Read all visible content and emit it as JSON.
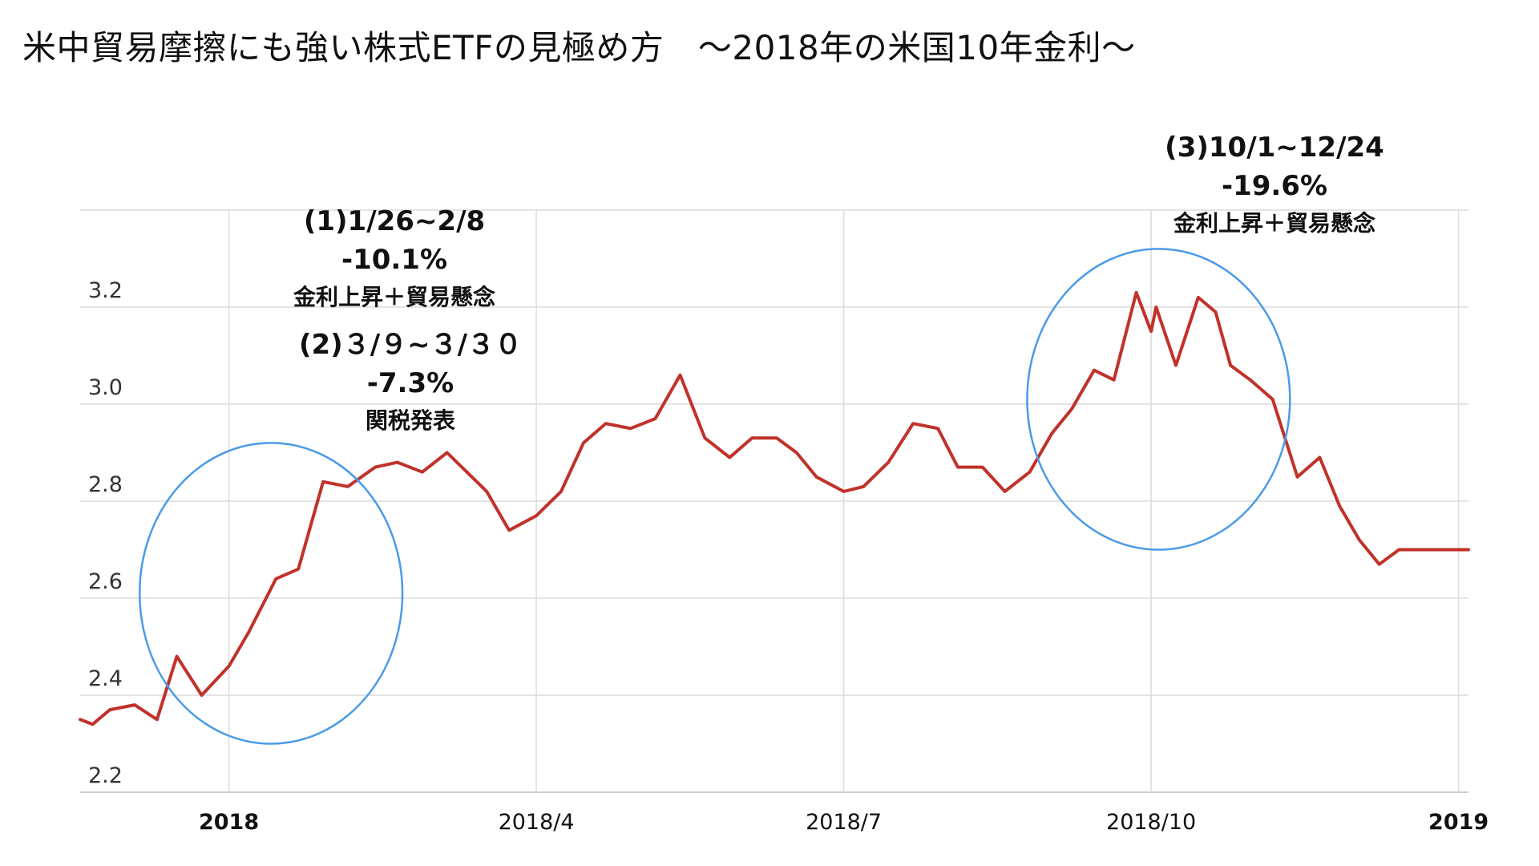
{
  "title": "米中貿易摩擦にも強い株式ETFの見極め方　～2018年の米国10年金利～",
  "annotations": [
    {
      "period": "(1)1/26~2/8",
      "change": "-10.1%",
      "reason": "金利上昇＋貿易懸念"
    },
    {
      "period": "(2)３/９~３/３０",
      "change": "-7.3%",
      "reason": "関税発表"
    },
    {
      "period": "(3)10/1~12/24",
      "change": "-19.6%",
      "reason": "金利上昇＋貿易懸念"
    }
  ],
  "chart_data": {
    "type": "line",
    "title": "",
    "xlabel": "",
    "ylabel": "",
    "ylim": [
      2.2,
      3.4
    ],
    "yticks": [
      2.2,
      2.4,
      2.6,
      2.8,
      3.0,
      3.2
    ],
    "ytick_labels": [
      "2.2",
      "2.4",
      "2.6",
      "2.8",
      "3.0",
      "3.2"
    ],
    "xlim": [
      -6,
      50
    ],
    "xticks": [
      {
        "x": 0,
        "label": "2018",
        "bold": true
      },
      {
        "x": 12.4,
        "label": "2018/4",
        "bold": false
      },
      {
        "x": 24.8,
        "label": "2018/7",
        "bold": false
      },
      {
        "x": 37.2,
        "label": "2018/10",
        "bold": false
      },
      {
        "x": 49.6,
        "label": "2019",
        "bold": true
      }
    ],
    "grid": true,
    "line_color": "#c0322a",
    "highlight_color": "#4a9be8",
    "highlights": [
      {
        "x_center": 1.7,
        "y_center": 2.61,
        "x_radius": 5.3,
        "y_radius": 0.31
      },
      {
        "x_center": 37.5,
        "y_center": 3.01,
        "x_radius": 5.3,
        "y_radius": 0.31
      }
    ],
    "series": [
      {
        "x": [
          -6,
          -5.5,
          -4.8,
          -3.8,
          -2.9,
          -2.1,
          -1.1,
          0,
          0.8,
          1.9,
          2.8,
          3.8,
          4.8,
          5.9,
          6.8,
          7.8,
          8.8,
          9.8,
          10.4,
          11.3,
          12.4,
          13.4,
          14.3,
          15.2,
          16.2,
          17.2,
          18.2,
          19.2,
          20.2,
          21.1,
          22.1,
          22.9,
          23.7,
          24.8,
          25.6,
          26.6,
          27.6,
          28.6,
          29.4,
          30.4,
          31.3,
          32.3,
          33.2,
          34.0,
          34.9,
          35.7,
          36.6,
          37.2,
          37.4,
          38.2,
          39.1,
          39.8,
          40.4,
          41.2,
          42.1,
          43.1,
          44.0,
          44.8,
          45.6,
          46.4,
          47.2,
          48.0,
          48.9,
          49.6,
          50
        ],
        "y": [
          2.35,
          2.34,
          2.37,
          2.38,
          2.35,
          2.48,
          2.4,
          2.46,
          2.53,
          2.64,
          2.66,
          2.84,
          2.83,
          2.87,
          2.88,
          2.86,
          2.9,
          2.85,
          2.82,
          2.74,
          2.77,
          2.82,
          2.92,
          2.96,
          2.95,
          2.97,
          3.06,
          2.93,
          2.89,
          2.93,
          2.93,
          2.9,
          2.85,
          2.82,
          2.83,
          2.88,
          2.96,
          2.95,
          2.87,
          2.87,
          2.82,
          2.86,
          2.94,
          2.99,
          3.07,
          3.05,
          3.23,
          3.15,
          3.2,
          3.08,
          3.22,
          3.19,
          3.08,
          3.05,
          3.01,
          2.85,
          2.89,
          2.79,
          2.72,
          2.67,
          2.7,
          2.7,
          2.7,
          2.7,
          2.7
        ]
      }
    ]
  }
}
